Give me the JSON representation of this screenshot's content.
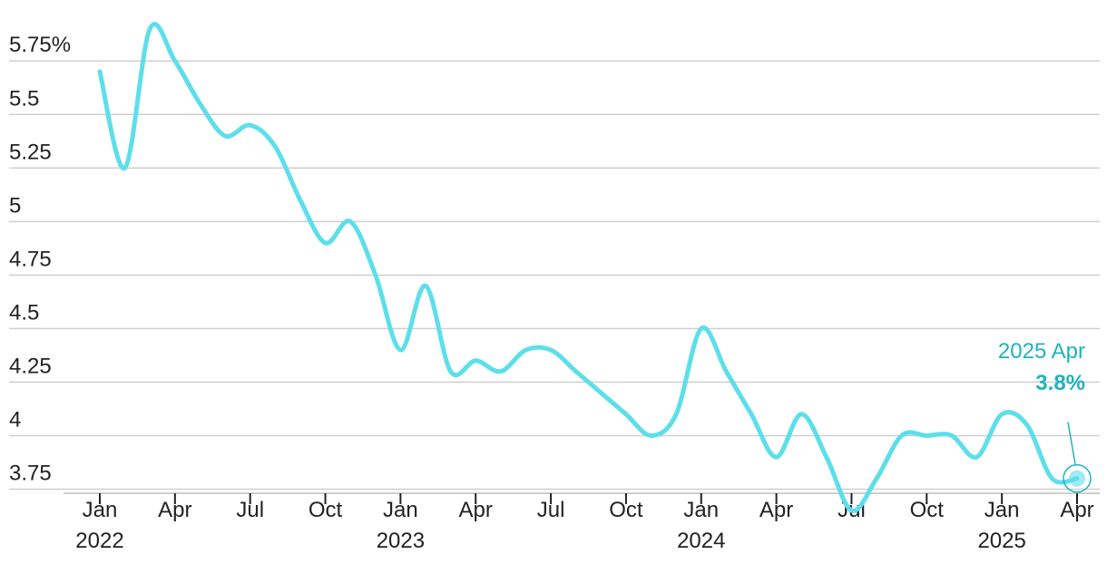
{
  "chart_data": {
    "type": "line",
    "y_ticks": [
      "5.75%",
      "5.5",
      "5.25",
      "5",
      "4.75",
      "4.5",
      "4.25",
      "4",
      "3.75"
    ],
    "y_tick_values": [
      5.75,
      5.5,
      5.25,
      5,
      4.75,
      4.5,
      4.25,
      4,
      3.75
    ],
    "ylim": [
      3.68,
      5.95
    ],
    "x_ticks": [
      {
        "month": "Jan",
        "year": "2022",
        "date": "2022-01"
      },
      {
        "month": "Apr",
        "year": "",
        "date": "2022-04"
      },
      {
        "month": "Jul",
        "year": "",
        "date": "2022-07"
      },
      {
        "month": "Oct",
        "year": "",
        "date": "2022-10"
      },
      {
        "month": "Jan",
        "year": "2023",
        "date": "2023-01"
      },
      {
        "month": "Apr",
        "year": "",
        "date": "2023-04"
      },
      {
        "month": "Jul",
        "year": "",
        "date": "2023-07"
      },
      {
        "month": "Oct",
        "year": "",
        "date": "2023-10"
      },
      {
        "month": "Jan",
        "year": "2024",
        "date": "2024-01"
      },
      {
        "month": "Apr",
        "year": "",
        "date": "2024-04"
      },
      {
        "month": "Jul",
        "year": "",
        "date": "2024-07"
      },
      {
        "month": "Oct",
        "year": "",
        "date": "2024-10"
      },
      {
        "month": "Jan",
        "year": "2025",
        "date": "2025-01"
      },
      {
        "month": "Apr",
        "year": "",
        "date": "2025-04"
      }
    ],
    "series": [
      {
        "color": "#5ddfea",
        "x": [
          "2022-01",
          "2022-02",
          "2022-03",
          "2022-04",
          "2022-05",
          "2022-06",
          "2022-07",
          "2022-08",
          "2022-09",
          "2022-10",
          "2022-11",
          "2022-12",
          "2023-01",
          "2023-02",
          "2023-03",
          "2023-04",
          "2023-05",
          "2023-06",
          "2023-07",
          "2023-08",
          "2023-09",
          "2023-10",
          "2023-11",
          "2023-12",
          "2024-01",
          "2024-02",
          "2024-03",
          "2024-04",
          "2024-05",
          "2024-06",
          "2024-07",
          "2024-08",
          "2024-09",
          "2024-10",
          "2024-11",
          "2024-12",
          "2025-01",
          "2025-02",
          "2025-03",
          "2025-04"
        ],
        "values": [
          5.7,
          5.25,
          5.9,
          5.75,
          5.55,
          5.4,
          5.45,
          5.35,
          5.1,
          4.9,
          5.0,
          4.75,
          4.4,
          4.7,
          4.3,
          4.35,
          4.3,
          4.4,
          4.4,
          4.3,
          4.2,
          4.1,
          4.0,
          4.1,
          4.5,
          4.3,
          4.1,
          3.9,
          4.1,
          3.9,
          3.65,
          3.8,
          4.0,
          4.0,
          4.0,
          3.9,
          4.1,
          4.05,
          3.8,
          3.8
        ]
      }
    ],
    "annotation": {
      "label": "2025 Apr",
      "value": "3.8%",
      "color": "#1fb3bd",
      "date": "2025-04"
    },
    "grid": true
  }
}
